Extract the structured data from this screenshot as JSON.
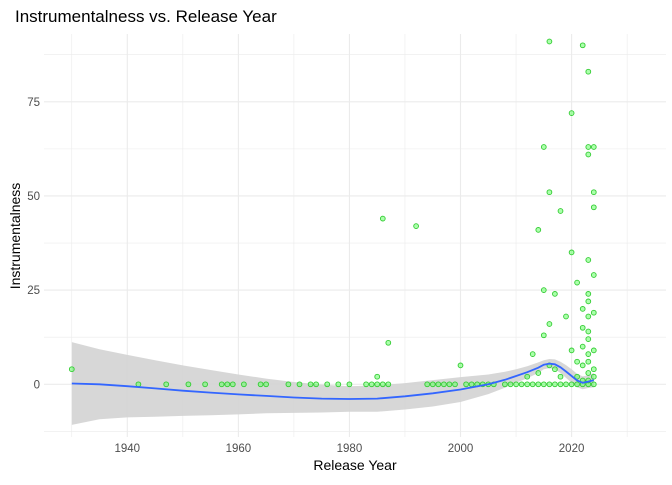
{
  "chart_data": {
    "type": "scatter",
    "title": "Instrumentalness vs. Release Year",
    "xlabel": "Release Year",
    "ylabel": "Instrumentalness",
    "xlim": [
      1925,
      2037
    ],
    "ylim": [
      -14,
      93
    ],
    "x_ticks": [
      1940,
      1960,
      1980,
      2000,
      2020
    ],
    "y_ticks": [
      0,
      25,
      50,
      75
    ],
    "grid": true,
    "colors": {
      "points_fill": "#66ff66",
      "points_stroke": "#33cc33",
      "smooth_line": "#3366ff",
      "ribbon": "#d3d3d3",
      "grid": "#ebebeb",
      "tick_text": "#4d4d4d"
    },
    "points": [
      [
        1930,
        4
      ],
      [
        1942,
        0
      ],
      [
        1947,
        0
      ],
      [
        1951,
        0
      ],
      [
        1954,
        0
      ],
      [
        1957,
        0
      ],
      [
        1958,
        0
      ],
      [
        1959,
        0
      ],
      [
        1961,
        0
      ],
      [
        1964,
        0
      ],
      [
        1965,
        0
      ],
      [
        1969,
        0
      ],
      [
        1971,
        0
      ],
      [
        1973,
        0
      ],
      [
        1974,
        0
      ],
      [
        1976,
        0
      ],
      [
        1978,
        0
      ],
      [
        1980,
        0
      ],
      [
        1983,
        0
      ],
      [
        1984,
        0
      ],
      [
        1985,
        0
      ],
      [
        1985,
        2
      ],
      [
        1986,
        0
      ],
      [
        1987,
        0
      ],
      [
        1986,
        44
      ],
      [
        1987,
        11
      ],
      [
        1992,
        42
      ],
      [
        1994,
        0
      ],
      [
        1995,
        0
      ],
      [
        1996,
        0
      ],
      [
        1997,
        0
      ],
      [
        1998,
        0
      ],
      [
        1999,
        0
      ],
      [
        2000,
        5
      ],
      [
        2001,
        0
      ],
      [
        2002,
        0
      ],
      [
        2003,
        0
      ],
      [
        2004,
        0
      ],
      [
        2005,
        0
      ],
      [
        2006,
        0
      ],
      [
        2008,
        0
      ],
      [
        2009,
        0
      ],
      [
        2010,
        0
      ],
      [
        2011,
        0
      ],
      [
        2012,
        0
      ],
      [
        2012,
        2
      ],
      [
        2013,
        0
      ],
      [
        2013,
        8
      ],
      [
        2014,
        0
      ],
      [
        2014,
        3
      ],
      [
        2014,
        41
      ],
      [
        2015,
        0
      ],
      [
        2015,
        13
      ],
      [
        2015,
        25
      ],
      [
        2015,
        63
      ],
      [
        2016,
        0
      ],
      [
        2016,
        91
      ],
      [
        2016,
        51
      ],
      [
        2016,
        16
      ],
      [
        2016,
        5
      ],
      [
        2017,
        0
      ],
      [
        2017,
        24
      ],
      [
        2017,
        4
      ],
      [
        2018,
        0
      ],
      [
        2018,
        46
      ],
      [
        2018,
        2
      ],
      [
        2019,
        0
      ],
      [
        2019,
        18
      ],
      [
        2020,
        0
      ],
      [
        2020,
        35
      ],
      [
        2020,
        72
      ],
      [
        2020,
        9
      ],
      [
        2021,
        0
      ],
      [
        2021,
        27
      ],
      [
        2021,
        6
      ],
      [
        2021,
        2
      ],
      [
        2022,
        0
      ],
      [
        2022,
        90
      ],
      [
        2022,
        20
      ],
      [
        2022,
        15
      ],
      [
        2022,
        10
      ],
      [
        2022,
        5
      ],
      [
        2022,
        1
      ],
      [
        2023,
        0
      ],
      [
        2023,
        83
      ],
      [
        2023,
        63
      ],
      [
        2023,
        61
      ],
      [
        2023,
        33
      ],
      [
        2023,
        24
      ],
      [
        2023,
        22
      ],
      [
        2023,
        18
      ],
      [
        2023,
        14
      ],
      [
        2023,
        12
      ],
      [
        2023,
        8
      ],
      [
        2023,
        6
      ],
      [
        2023,
        3
      ],
      [
        2023,
        1
      ],
      [
        2024,
        0
      ],
      [
        2024,
        63
      ],
      [
        2024,
        51
      ],
      [
        2024,
        47
      ],
      [
        2024,
        29
      ],
      [
        2024,
        19
      ],
      [
        2024,
        9
      ],
      [
        2024,
        4
      ],
      [
        2024,
        2
      ]
    ],
    "smooth": {
      "x": [
        1930,
        1935,
        1940,
        1945,
        1950,
        1955,
        1960,
        1965,
        1970,
        1975,
        1980,
        1985,
        1990,
        1995,
        2000,
        2005,
        2008,
        2010,
        2012,
        2014,
        2015,
        2016,
        2017,
        2018,
        2019,
        2020,
        2021,
        2022,
        2023,
        2024
      ],
      "y": [
        0.2,
        0,
        -0.5,
        -1.1,
        -1.7,
        -2.2,
        -2.7,
        -3.1,
        -3.5,
        -3.8,
        -3.9,
        -3.8,
        -3.2,
        -2.4,
        -1.4,
        0,
        1.2,
        2.2,
        3.2,
        4.4,
        5.2,
        5.5,
        5.3,
        4.5,
        3.4,
        2.2,
        1.0,
        0.4,
        0.7,
        1.1
      ],
      "upper": [
        11.2,
        9.3,
        7.8,
        6.4,
        5.0,
        3.8,
        2.6,
        1.5,
        0.6,
        -0.1,
        -0.5,
        -0.3,
        0.3,
        1.1,
        1.9,
        2.6,
        3.3,
        4.0,
        4.8,
        5.8,
        6.4,
        6.7,
        6.6,
        6.0,
        5.1,
        4.0,
        2.8,
        2.1,
        2.4,
        3.0
      ],
      "lower": [
        -10.8,
        -9.3,
        -8.8,
        -8.6,
        -8.4,
        -8.2,
        -8.0,
        -7.7,
        -7.6,
        -7.5,
        -7.3,
        -7.3,
        -6.7,
        -5.9,
        -4.7,
        -2.6,
        -0.9,
        0.4,
        1.6,
        3.0,
        4.0,
        4.3,
        4.0,
        3.0,
        1.7,
        0.4,
        -0.8,
        -1.3,
        -1.0,
        -0.8
      ]
    }
  }
}
